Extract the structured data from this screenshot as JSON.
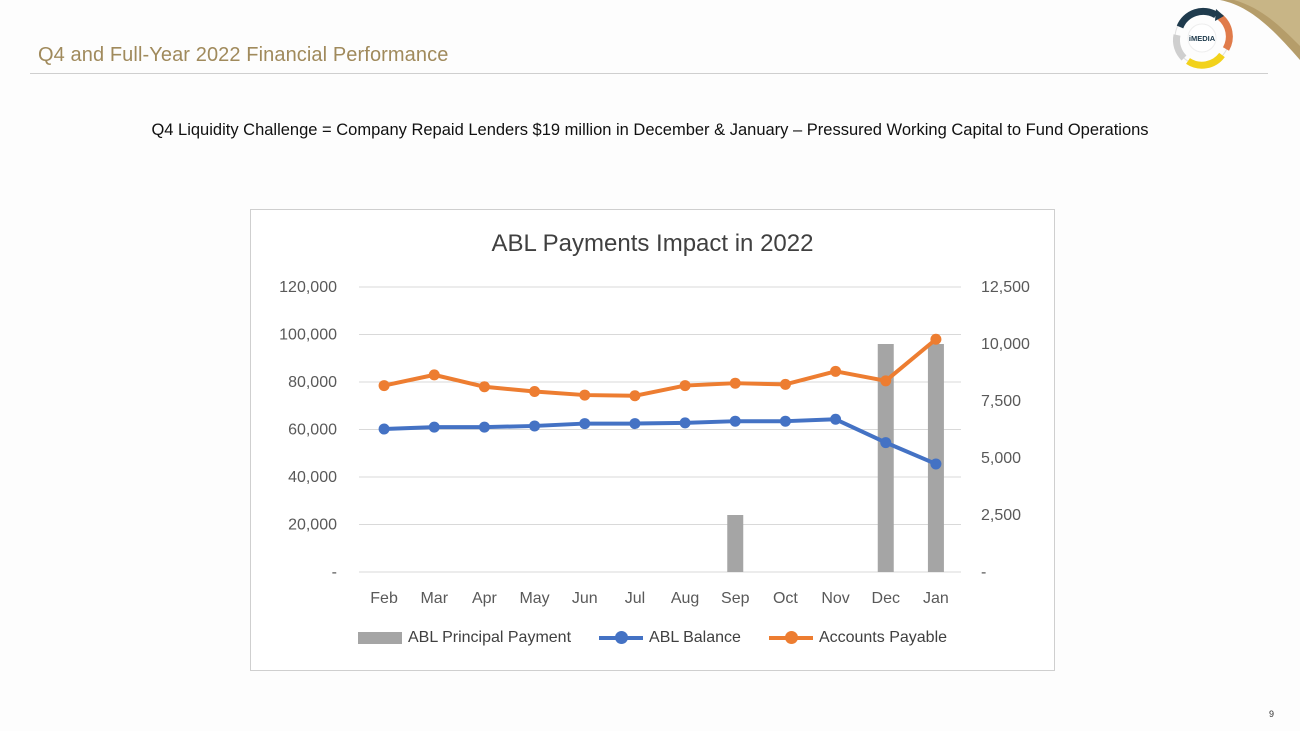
{
  "header": {
    "title": "Q4 and Full-Year 2022 Financial Performance",
    "subtitle": "Q4 Liquidity Challenge = Company Repaid Lenders $19 million in December & January – Pressured Working Capital to Fund Operations"
  },
  "logo": {
    "text": "iMEDIA",
    "icon": "cycle-arrows-logo-icon"
  },
  "page_number": "9",
  "colors": {
    "title_gold": "#a08a5c",
    "bar_gray": "#a5a5a5",
    "balance_blue": "#4472c4",
    "payable_orange": "#ed7d31",
    "grid": "#d9d9d9",
    "axis_text": "#595959"
  },
  "chart_data": {
    "type": "bar",
    "title": "ABL Payments Impact in 2022",
    "categories": [
      "Feb",
      "Mar",
      "Apr",
      "May",
      "Jun",
      "Jul",
      "Aug",
      "Sep",
      "Oct",
      "Nov",
      "Dec",
      "Jan"
    ],
    "y_left": {
      "range": [
        0,
        120000
      ],
      "ticks": [
        0,
        20000,
        40000,
        60000,
        80000,
        100000,
        120000
      ],
      "tick_labels": [
        "-",
        "20,000",
        "40,000",
        "60,000",
        "80,000",
        "100,000",
        "120,000"
      ]
    },
    "y_right": {
      "range": [
        0,
        12500
      ],
      "ticks": [
        0,
        2500,
        5000,
        7500,
        10000,
        12500
      ],
      "tick_labels": [
        "-",
        "2,500",
        "5,000",
        "7,500",
        "10,000",
        "12,500"
      ]
    },
    "series": [
      {
        "name": "ABL Principal Payment",
        "type": "bar",
        "axis": "right",
        "values": [
          0,
          0,
          0,
          0,
          0,
          0,
          0,
          2500,
          0,
          0,
          10000,
          10000
        ]
      },
      {
        "name": "ABL Balance",
        "type": "line",
        "axis": "left",
        "values": [
          60200,
          61000,
          61000,
          61500,
          62500,
          62500,
          62800,
          63500,
          63500,
          64300,
          54500,
          45500
        ]
      },
      {
        "name": "Accounts Payable",
        "type": "line",
        "axis": "left",
        "values": [
          78500,
          83000,
          78000,
          76000,
          74500,
          74200,
          78500,
          79500,
          79000,
          84500,
          80500,
          98000
        ]
      }
    ],
    "grid": true,
    "legend_position": "bottom"
  }
}
